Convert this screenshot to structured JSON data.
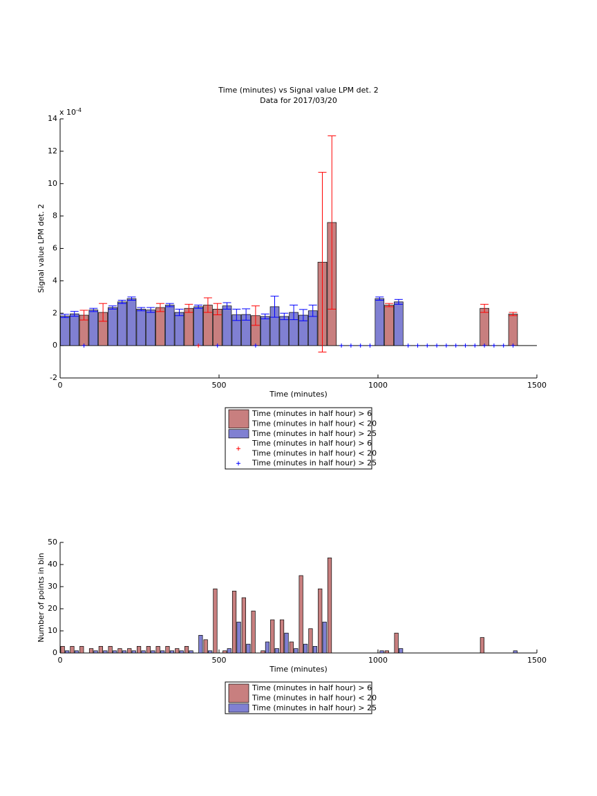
{
  "chart_data": [
    {
      "type": "bar",
      "title": "Time (minutes) vs Signal value LPM det. 2",
      "subtitle": "Data for 2017/03/20",
      "x_label": "Time (minutes)",
      "y_label": "Signal value LPM det. 2",
      "y_scale_label": "x 10",
      "y_scale_exponent": "-4",
      "xlim": [
        0,
        1500
      ],
      "xticks": [
        0,
        500,
        1000,
        1500
      ],
      "ylim": [
        -2,
        14
      ],
      "yticks": [
        -2,
        0,
        2,
        4,
        6,
        8,
        10,
        12,
        14
      ],
      "bar_width": 28,
      "series": [
        {
          "name": [
            "Time (minutes in half hour) > 6",
            "Time (minutes in half hour) < 20"
          ],
          "mark": "bar",
          "color": "#c87f7f",
          "error_color": "#ff0000",
          "x": [
            75,
            135,
            315,
            405,
            465,
            495,
            615,
            825,
            855,
            1035,
            1335,
            1425
          ],
          "values": [
            1.88,
            2.05,
            2.35,
            2.3,
            2.5,
            2.25,
            1.85,
            5.15,
            7.6,
            2.5,
            2.3,
            1.95
          ],
          "errors": [
            0.3,
            0.55,
            0.25,
            0.25,
            0.45,
            0.35,
            0.6,
            5.55,
            5.35,
            0.1,
            0.25,
            0.1
          ]
        },
        {
          "name": [
            "Time (minutes in half hour) > 25"
          ],
          "mark": "bar",
          "color": "#8080d2",
          "error_color": "#0000ff",
          "x": [
            15,
            45,
            105,
            165,
            195,
            225,
            255,
            285,
            345,
            375,
            435,
            525,
            555,
            585,
            645,
            675,
            705,
            735,
            765,
            795,
            1005,
            1065
          ],
          "values": [
            1.83,
            1.96,
            2.2,
            2.35,
            2.7,
            2.9,
            2.25,
            2.2,
            2.5,
            2.05,
            2.4,
            2.45,
            1.9,
            1.92,
            1.8,
            2.4,
            1.8,
            2.05,
            1.88,
            2.15,
            2.9,
            2.7
          ],
          "errors": [
            0.1,
            0.15,
            0.1,
            0.1,
            0.1,
            0.1,
            0.1,
            0.15,
            0.1,
            0.2,
            0.1,
            0.2,
            0.35,
            0.35,
            0.15,
            0.65,
            0.2,
            0.45,
            0.35,
            0.35,
            0.1,
            0.15
          ]
        },
        {
          "name": [
            "Time (minutes in half hour) > 6",
            "Time (minutes in half hour) < 20"
          ],
          "mark": "plus",
          "color": "#ff0000",
          "x": [
            435
          ],
          "values": [
            0
          ]
        },
        {
          "name": [
            "Time (minutes in half hour) > 25"
          ],
          "mark": "plus",
          "color": "#0000ff",
          "x": [
            75,
            495,
            615,
            885,
            915,
            945,
            975,
            1095,
            1125,
            1155,
            1185,
            1215,
            1245,
            1275,
            1305,
            1335,
            1365,
            1395,
            1425
          ],
          "values": [
            0,
            0,
            0,
            0,
            0,
            0,
            0,
            0,
            0,
            0,
            0,
            0,
            0,
            0,
            0,
            0,
            0,
            0,
            0
          ]
        }
      ]
    },
    {
      "type": "grouped_bar",
      "x_label": "Time (minutes)",
      "y_label": "Number of points in bin",
      "xlim": [
        0,
        1500
      ],
      "xticks": [
        0,
        500,
        1000,
        1500
      ],
      "ylim": [
        0,
        50
      ],
      "yticks": [
        0,
        10,
        20,
        30,
        40,
        50
      ],
      "x": [
        15,
        45,
        75,
        105,
        135,
        165,
        195,
        225,
        255,
        285,
        315,
        345,
        375,
        405,
        435,
        465,
        495,
        525,
        555,
        585,
        615,
        645,
        675,
        705,
        735,
        765,
        795,
        825,
        855,
        885,
        915,
        945,
        975,
        1005,
        1035,
        1065,
        1095,
        1125,
        1155,
        1185,
        1215,
        1245,
        1275,
        1305,
        1335,
        1365,
        1395,
        1425
      ],
      "series": [
        {
          "name": [
            "Time (minutes in half hour) > 6",
            "Time (minutes in half hour) < 20"
          ],
          "color": "#c87f7f",
          "values": [
            3,
            3,
            3,
            2,
            3,
            3,
            2,
            2,
            3,
            3,
            3,
            3,
            2,
            3,
            0,
            6,
            29,
            1,
            28,
            25,
            19,
            1,
            15,
            15,
            5,
            35,
            11,
            29,
            43,
            0,
            0,
            0,
            0,
            0,
            1,
            9,
            0,
            0,
            0,
            0,
            0,
            0,
            0,
            0,
            7,
            0,
            0,
            0
          ]
        },
        {
          "name": [
            "Time (minutes in half hour) > 25"
          ],
          "color": "#8080d2",
          "values": [
            1,
            1,
            0,
            1,
            1,
            1,
            1,
            1,
            1,
            1,
            1,
            1,
            1,
            1,
            8,
            1,
            0,
            2,
            14,
            4,
            0,
            5,
            2,
            9,
            2,
            4,
            3,
            14,
            0,
            0,
            0,
            0,
            0,
            1,
            0,
            2,
            0,
            0,
            0,
            0,
            0,
            0,
            0,
            0,
            0,
            0,
            0,
            1
          ]
        }
      ]
    }
  ]
}
